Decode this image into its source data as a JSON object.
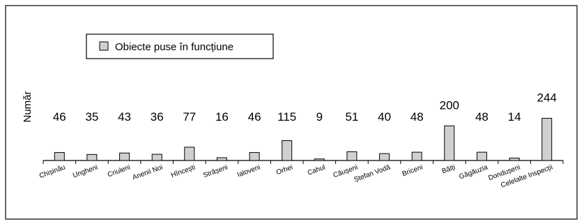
{
  "chart_data": {
    "type": "bar",
    "ylabel": "Număr",
    "legend": {
      "position": "top-left",
      "entries": [
        "Obiecte puse în funcțiune"
      ]
    },
    "grid": false,
    "categories": [
      "Chișinău",
      "Ungheni",
      "Criuleni",
      "Anenii Noi",
      "Hîncești",
      "Strășeni",
      "Ialoveni",
      "Orhei",
      "Cahul",
      "Căușeni",
      "Ștefan Vodă",
      "Briceni",
      "Bălți",
      "Găgăuzia",
      "Dondușeni",
      "Celelalte Inspecții"
    ],
    "series": [
      {
        "name": "Obiecte puse în funcțiune",
        "color": "#d0d0d0",
        "values": [
          46,
          35,
          43,
          36,
          77,
          16,
          46,
          115,
          9,
          51,
          40,
          48,
          200,
          48,
          14,
          244
        ]
      }
    ],
    "ylim": [
      0,
      300
    ]
  }
}
